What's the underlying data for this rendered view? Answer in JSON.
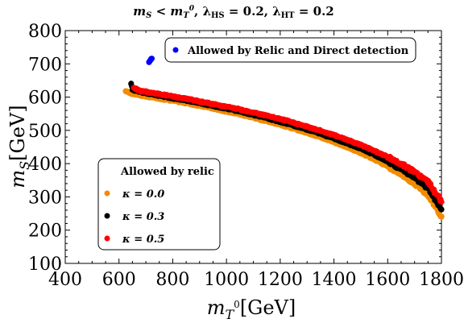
{
  "chart_data": {
    "type": "scatter",
    "title": "m_S < m_T⁰, λ_HS = 0.2, λ_HT = 0.2",
    "title_parts": {
      "lhs": "m",
      "lhs_sub": "S",
      "op": " < ",
      "rhs": "m",
      "rhs_sub": "T",
      "rhs_sup": "0",
      "sep1": ", ",
      "lam1": "λ",
      "lam1_sub": "HS",
      "lam1_val": " = 0.2,",
      "lam2": " λ",
      "lam2_sub": "HT",
      "lam2_val": " = 0.2"
    },
    "xlabel": {
      "main": "m",
      "sub": "T",
      "sup": "0",
      "unit": "[GeV]"
    },
    "ylabel": {
      "main": "m",
      "sub": "S",
      "unit": "[GeV]"
    },
    "xlim": [
      400,
      1800
    ],
    "ylim": [
      100,
      800
    ],
    "xticks": [
      "400",
      "600",
      "800",
      "1000",
      "1200",
      "1400",
      "1600",
      "1800"
    ],
    "yticks": [
      "100",
      "200",
      "300",
      "400",
      "500",
      "600",
      "700",
      "800"
    ],
    "grid": false,
    "colors": {
      "kappa00": "#f28c00",
      "kappa03": "#000000",
      "kappa05": "#ff0000",
      "relic_dd": "#0000ff"
    },
    "legend_relic": {
      "title": "Allowed by relic",
      "placement": "lower-left",
      "entries": [
        "κ = 0.0",
        "κ = 0.3",
        "κ = 0.5"
      ]
    },
    "legend_dd": {
      "placement": "top-right",
      "entry": "Allowed by Relic and Direct detection"
    },
    "series": [
      {
        "name": "κ = 0.0",
        "color": "#f28c00",
        "band_offset": -12,
        "x": [
          625,
          650,
          700,
          750,
          800,
          850,
          900,
          950,
          1000,
          1050,
          1100,
          1150,
          1200,
          1250,
          1300,
          1350,
          1400,
          1450,
          1500,
          1550,
          1600,
          1650,
          1700,
          1750,
          1800
        ],
        "y": [
          618,
          610,
          602,
          596,
          589,
          582,
          574,
          566,
          557,
          548,
          538,
          528,
          517,
          505,
          493,
          479,
          465,
          449,
          432,
          413,
          392,
          368,
          340,
          306,
          240
        ]
      },
      {
        "name": "κ = 0.3",
        "color": "#000000",
        "band_offset": 0,
        "x": [
          645,
          650,
          700,
          750,
          800,
          850,
          900,
          950,
          1000,
          1050,
          1100,
          1150,
          1200,
          1250,
          1300,
          1350,
          1400,
          1450,
          1500,
          1550,
          1600,
          1650,
          1700,
          1750,
          1800
        ],
        "y": [
          640,
          622,
          612,
          605,
          597,
          590,
          582,
          574,
          566,
          557,
          547,
          537,
          526,
          515,
          503,
          490,
          476,
          461,
          445,
          427,
          407,
          384,
          358,
          326,
          262
        ]
      },
      {
        "name": "κ = 0.5",
        "color": "#ff0000",
        "band_offset": 6,
        "x": [
          655,
          680,
          700,
          750,
          800,
          850,
          900,
          950,
          1000,
          1050,
          1100,
          1150,
          1200,
          1250,
          1300,
          1350,
          1400,
          1450,
          1500,
          1550,
          1600,
          1650,
          1700,
          1750,
          1800
        ],
        "y": [
          628,
          618,
          616,
          609,
          602,
          595,
          587,
          579,
          571,
          563,
          554,
          544,
          534,
          523,
          511,
          499,
          486,
          472,
          456,
          439,
          420,
          399,
          375,
          346,
          285
        ]
      },
      {
        "name": "Allowed by Relic and Direct detection",
        "color": "#0000ff",
        "band_offset": 0,
        "x": [
          712,
          715,
          718,
          720,
          722
        ],
        "y": [
          705,
          709,
          712,
          715,
          716
        ]
      }
    ]
  }
}
